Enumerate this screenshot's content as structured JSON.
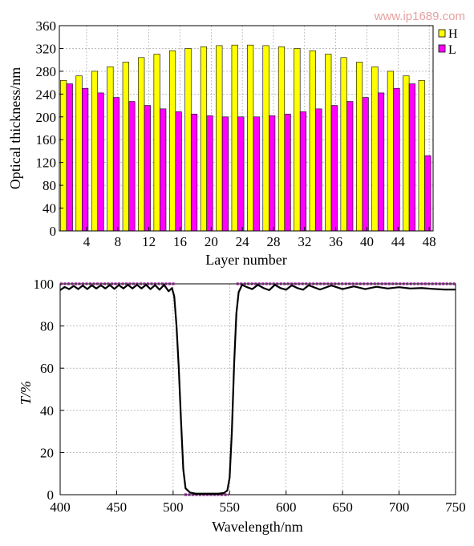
{
  "watermark": "www.ip1689.com",
  "colors": {
    "H": "#ffff00",
    "L": "#ff00ff",
    "curve": "#000000",
    "target": "#cc66cc",
    "grid": "#999999"
  },
  "chart_data": [
    {
      "type": "bar",
      "xlabel": "Layer number",
      "ylabel": "Optical thickness/nm",
      "ylim": [
        0,
        360
      ],
      "yticks": [
        0,
        40,
        80,
        120,
        160,
        200,
        240,
        280,
        320,
        360
      ],
      "xtick_labels": [
        "4",
        "8",
        "12",
        "16",
        "20",
        "24",
        "28",
        "32",
        "36",
        "40",
        "44",
        "48"
      ],
      "grid": true,
      "legend_position": "top-right",
      "series": [
        {
          "name": "H",
          "values": [
            264,
            272,
            280,
            288,
            296,
            304,
            310,
            316,
            320,
            323,
            325,
            326,
            326,
            325,
            323,
            320,
            316,
            310,
            304,
            296,
            288,
            280,
            272,
            264
          ]
        },
        {
          "name": "L",
          "values": [
            258,
            250,
            242,
            234,
            227,
            220,
            214,
            209,
            205,
            202,
            200,
            200,
            200,
            202,
            205,
            209,
            214,
            220,
            227,
            234,
            242,
            250,
            258,
            132
          ]
        }
      ]
    },
    {
      "type": "line",
      "xlabel": "Wavelength/nm",
      "ylabel": "T/%",
      "xlim": [
        400,
        750
      ],
      "ylim": [
        0,
        100
      ],
      "xticks": [
        400,
        450,
        500,
        550,
        600,
        650,
        700,
        750
      ],
      "yticks": [
        0,
        20,
        40,
        60,
        80,
        100
      ],
      "grid": true,
      "target_bands": [
        {
          "x": [
            400,
            502
          ],
          "y": 100
        },
        {
          "x": [
            510,
            549
          ],
          "y": 0
        },
        {
          "x": [
            556,
            750
          ],
          "y": 100
        }
      ],
      "series": [
        {
          "x": [
            400,
            404,
            408,
            412,
            416,
            420,
            424,
            428,
            432,
            436,
            440,
            444,
            448,
            452,
            456,
            460,
            464,
            468,
            472,
            476,
            480,
            484,
            488,
            492,
            496,
            499,
            501,
            503,
            505,
            507,
            509,
            511,
            515,
            520,
            530,
            540,
            545,
            548,
            550,
            552,
            554,
            556,
            558,
            561,
            565,
            570,
            575,
            580,
            585,
            590,
            595,
            600,
            605,
            610,
            615,
            620,
            630,
            640,
            650,
            660,
            670,
            680,
            690,
            700,
            710,
            720,
            730,
            740,
            750
          ],
          "y": [
            97,
            98.5,
            97.5,
            99,
            97.5,
            99.2,
            97.5,
            99.3,
            97.8,
            99.3,
            97.8,
            99.4,
            97.6,
            99.4,
            97.8,
            99.5,
            97.8,
            99.5,
            97.8,
            99.5,
            97.5,
            99.4,
            97.2,
            99.5,
            96.5,
            98,
            94,
            80,
            60,
            35,
            12,
            3,
            1,
            0.5,
            0.5,
            0.5,
            0.8,
            2,
            8,
            30,
            62,
            86,
            96,
            99.5,
            98.5,
            97.5,
            99.5,
            98,
            97,
            99.5,
            98,
            97.2,
            99.3,
            98,
            97.2,
            99.3,
            97.3,
            99.2,
            97.5,
            98.8,
            97.5,
            98.6,
            97.8,
            98.4,
            97.8,
            98,
            97.6,
            97.3,
            97.3
          ]
        }
      ]
    }
  ]
}
